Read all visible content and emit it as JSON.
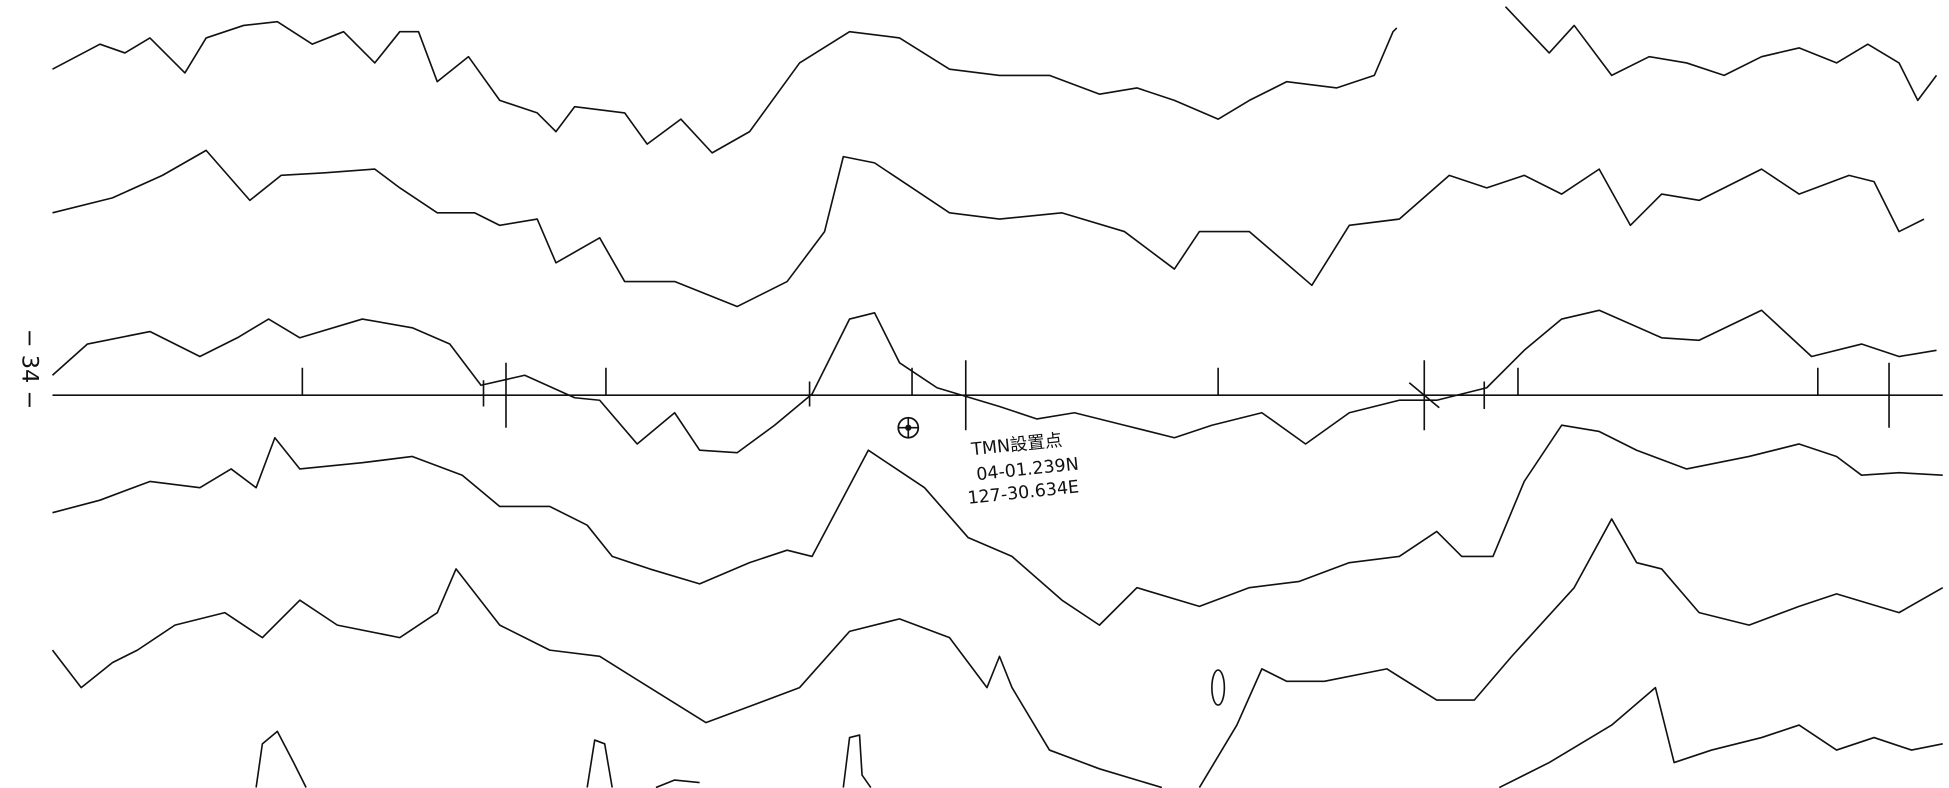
{
  "page_number": "− 34 −",
  "annotation": {
    "label": "TMN設置点",
    "latitude": "04-01.239N",
    "longitude": "127-30.634E"
  }
}
